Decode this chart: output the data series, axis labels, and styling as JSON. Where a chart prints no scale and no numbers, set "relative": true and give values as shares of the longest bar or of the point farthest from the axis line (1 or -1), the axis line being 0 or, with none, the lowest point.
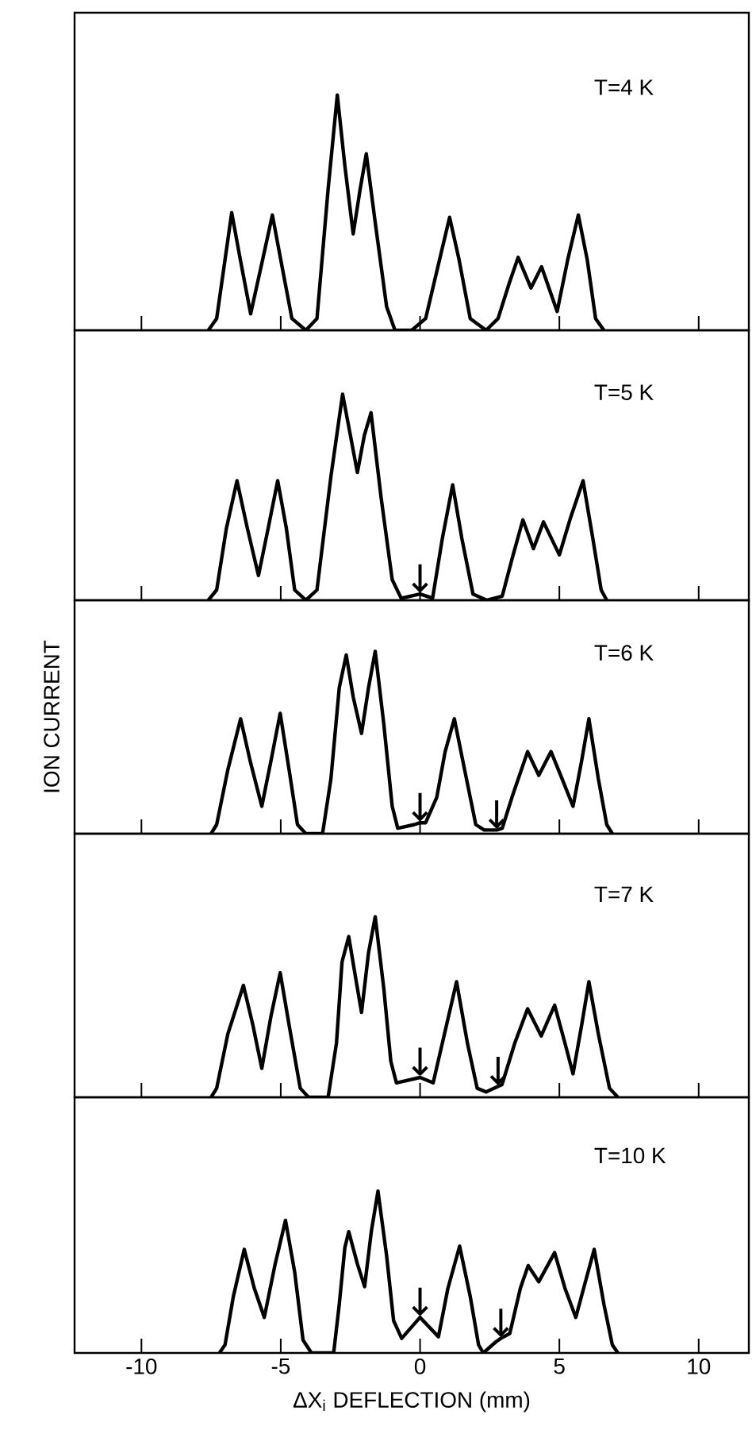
{
  "chart_data": [
    {
      "type": "line",
      "relative": true,
      "xlim": [
        -12.4,
        11.8
      ],
      "xticks": [
        -10,
        -5,
        0,
        5,
        10
      ],
      "tick_labels": false,
      "x": [
        -7.6,
        -7.3,
        -7.0,
        -6.76,
        -6.45,
        -6.08,
        -5.65,
        -5.3,
        -5.0,
        -4.6,
        -4.1,
        -3.7,
        -3.3,
        -2.97,
        -2.7,
        -2.4,
        -2.15,
        -1.93,
        -1.6,
        -1.2,
        -0.9,
        -0.3,
        0.2,
        0.7,
        1.06,
        1.4,
        1.8,
        2.37,
        2.8,
        3.2,
        3.52,
        3.98,
        4.36,
        4.92,
        5.3,
        5.68,
        6.0,
        6.3,
        6.6
      ],
      "series": [
        {
          "color": "#000000",
          "values": [
            0,
            0.05,
            0.3,
            0.5,
            0.3,
            0.07,
            0.3,
            0.49,
            0.3,
            0.05,
            0,
            0.05,
            0.6,
            1.0,
            0.7,
            0.41,
            0.6,
            0.75,
            0.45,
            0.1,
            0,
            0,
            0.05,
            0.3,
            0.48,
            0.3,
            0.05,
            0,
            0.05,
            0.2,
            0.31,
            0.18,
            0.27,
            0.08,
            0.3,
            0.49,
            0.3,
            0.05,
            0
          ]
        }
      ],
      "annotations": [
        "T=4 K"
      ]
    },
    {
      "type": "line",
      "relative": true,
      "xlim": [
        -12.4,
        11.8
      ],
      "xticks": [
        -10,
        -5,
        0,
        5,
        10
      ],
      "tick_labels": false,
      "x": [
        -7.6,
        -7.3,
        -6.95,
        -6.57,
        -6.2,
        -5.8,
        -5.45,
        -5.11,
        -4.8,
        -4.5,
        -4.1,
        -3.7,
        -3.2,
        -2.78,
        -2.5,
        -2.25,
        -2.0,
        -1.76,
        -1.4,
        -1.0,
        -0.68,
        0,
        0.45,
        0.8,
        1.17,
        1.5,
        1.9,
        2.4,
        2.95,
        3.3,
        3.69,
        4.07,
        4.43,
        5.0,
        5.4,
        5.85,
        6.2,
        6.5,
        6.7
      ],
      "series": [
        {
          "color": "#000000",
          "values": [
            0,
            0.05,
            0.35,
            0.58,
            0.35,
            0.12,
            0.35,
            0.58,
            0.35,
            0.05,
            0,
            0.05,
            0.6,
            1.0,
            0.8,
            0.62,
            0.8,
            0.91,
            0.5,
            0.1,
            0.01,
            0.03,
            0.01,
            0.3,
            0.56,
            0.3,
            0.03,
            0,
            0.02,
            0.2,
            0.39,
            0.25,
            0.38,
            0.22,
            0.4,
            0.58,
            0.3,
            0.05,
            0
          ]
        }
      ],
      "annotations": [
        "T=5 K",
        {
          "text": "↓",
          "x": 0,
          "y": 0.03
        }
      ]
    },
    {
      "type": "line",
      "relative": true,
      "xlim": [
        -12.4,
        11.8
      ],
      "xticks": [
        -10,
        -5,
        0,
        5,
        10
      ],
      "tick_labels": false,
      "ylabel": "ION CURRENT",
      "x": [
        -7.5,
        -7.3,
        -6.9,
        -6.44,
        -6.1,
        -5.68,
        -5.35,
        -5.02,
        -4.7,
        -4.4,
        -4.1,
        -3.5,
        -3.2,
        -2.9,
        -2.65,
        -2.4,
        -2.1,
        -1.85,
        -1.61,
        -1.3,
        -1.0,
        -0.8,
        -0.2,
        0,
        0.2,
        0.6,
        0.9,
        1.23,
        1.6,
        2.0,
        2.3,
        2.75,
        2.95,
        3.3,
        3.86,
        4.26,
        4.7,
        5.1,
        5.49,
        5.8,
        6.06,
        6.4,
        6.7,
        6.9
      ],
      "series": [
        {
          "color": "#000000",
          "values": [
            0,
            0.05,
            0.35,
            0.63,
            0.4,
            0.15,
            0.4,
            0.66,
            0.35,
            0.05,
            0,
            0,
            0.3,
            0.8,
            0.98,
            0.75,
            0.55,
            0.8,
            1.0,
            0.6,
            0.15,
            0.03,
            0.05,
            0.06,
            0.06,
            0.2,
            0.45,
            0.63,
            0.35,
            0.05,
            0.02,
            0.02,
            0.03,
            0.2,
            0.45,
            0.32,
            0.45,
            0.3,
            0.15,
            0.4,
            0.63,
            0.3,
            0.05,
            0
          ]
        }
      ],
      "annotations": [
        "T=6 K",
        {
          "text": "↓",
          "x": 0,
          "y": 0.06
        },
        {
          "text": "↓",
          "x": 2.75,
          "y": 0.02
        }
      ]
    },
    {
      "type": "line",
      "relative": true,
      "xlim": [
        -12.4,
        11.8
      ],
      "xticks": [
        -10,
        -5,
        0,
        5,
        10
      ],
      "tick_labels": false,
      "x": [
        -7.5,
        -7.3,
        -6.9,
        -6.34,
        -6.0,
        -5.68,
        -5.35,
        -5.02,
        -4.7,
        -4.3,
        -4.0,
        -3.3,
        -3.0,
        -2.8,
        -2.56,
        -2.3,
        -2.1,
        -1.85,
        -1.61,
        -1.3,
        -1.05,
        -0.85,
        0,
        0.47,
        0.8,
        1.31,
        1.7,
        2.05,
        2.37,
        2.8,
        2.94,
        3.4,
        3.86,
        4.35,
        4.83,
        5.2,
        5.49,
        5.8,
        6.06,
        6.4,
        6.8,
        7.1
      ],
      "series": [
        {
          "color": "#000000",
          "values": [
            0,
            0.05,
            0.35,
            0.62,
            0.4,
            0.16,
            0.45,
            0.69,
            0.4,
            0.05,
            0,
            0,
            0.3,
            0.75,
            0.89,
            0.65,
            0.47,
            0.8,
            1.0,
            0.6,
            0.2,
            0.08,
            0.11,
            0.08,
            0.3,
            0.64,
            0.3,
            0.05,
            0.03,
            0.06,
            0.07,
            0.3,
            0.49,
            0.34,
            0.51,
            0.3,
            0.13,
            0.4,
            0.64,
            0.35,
            0.05,
            0
          ]
        }
      ],
      "annotations": [
        "T=7 K",
        {
          "text": "↓",
          "x": 0,
          "y": 0.11
        },
        {
          "text": "↓",
          "x": 2.8,
          "y": 0.06
        }
      ]
    },
    {
      "type": "line",
      "relative": true,
      "xlim": [
        -12.4,
        11.8
      ],
      "xticks": [
        -10,
        -5,
        0,
        5,
        10
      ],
      "tick_labels": "x",
      "xlabel": "ΔX$_{i}$ DEFLECTION (mm)",
      "x": [
        -7.2,
        -7.0,
        -6.7,
        -6.31,
        -5.95,
        -5.59,
        -5.2,
        -4.83,
        -4.5,
        -4.2,
        -3.9,
        -3.1,
        -2.9,
        -2.7,
        -2.56,
        -2.25,
        -1.99,
        -1.75,
        -1.51,
        -1.2,
        -0.95,
        -0.66,
        0,
        0.66,
        1.0,
        1.42,
        1.8,
        2.1,
        2.27,
        2.73,
        2.9,
        3.22,
        3.6,
        3.88,
        4.26,
        4.83,
        5.2,
        5.59,
        5.95,
        6.25,
        6.6,
        6.9,
        7.1
      ],
      "series": [
        {
          "color": "#000000",
          "values": [
            0,
            0.05,
            0.35,
            0.64,
            0.4,
            0.22,
            0.55,
            0.82,
            0.5,
            0.08,
            0,
            0,
            0.3,
            0.65,
            0.75,
            0.55,
            0.41,
            0.75,
            1.0,
            0.6,
            0.2,
            0.09,
            0.22,
            0.1,
            0.4,
            0.66,
            0.35,
            0.05,
            0,
            0.07,
            0.09,
            0.12,
            0.4,
            0.54,
            0.44,
            0.62,
            0.4,
            0.22,
            0.45,
            0.64,
            0.3,
            0.05,
            0
          ]
        }
      ],
      "annotations": [
        "T=10 K",
        {
          "text": "↓",
          "x": 0,
          "y": 0.22
        },
        {
          "text": "↓",
          "x": 2.9,
          "y": 0.09
        }
      ]
    }
  ]
}
